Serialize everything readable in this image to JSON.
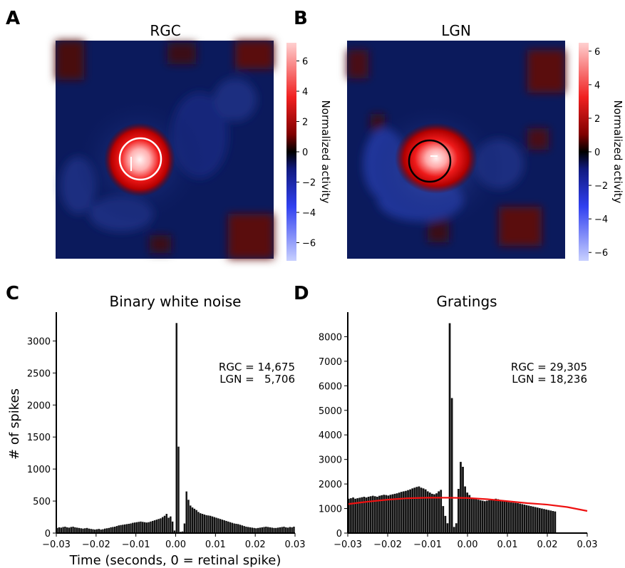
{
  "panel_labels": [
    "A",
    "B",
    "C",
    "D"
  ],
  "colors": {
    "bar": "#111111",
    "fit_line": "#ee1111",
    "map_negative": "#0a1a5e",
    "map_positive": "#b80000",
    "map_peak": "#fff0f0"
  },
  "chart_data": [
    {
      "type": "heatmap",
      "panel": "A",
      "title": "RGC",
      "colorbar_label": "Normalized activity",
      "colorbar_ticks": [
        "6",
        "4",
        "2",
        "0",
        "−2",
        "−4",
        "−6"
      ],
      "colorbar_tick_values": [
        6,
        4,
        2,
        0,
        -2,
        -4,
        -6
      ],
      "colorbar_range": [
        -7.2,
        7.2
      ],
      "circle_color": "white",
      "receptive_field_peak": 6.5
    },
    {
      "type": "heatmap",
      "panel": "B",
      "title": "LGN",
      "colorbar_label": "Normalized activity",
      "colorbar_ticks": [
        "6",
        "4",
        "2",
        "0",
        "−2",
        "−4",
        "−6"
      ],
      "colorbar_tick_values": [
        6,
        4,
        2,
        0,
        -2,
        -4,
        -6
      ],
      "colorbar_range": [
        -6.5,
        6.5
      ],
      "circle_color": "black",
      "receptive_field_peak": 6.0
    },
    {
      "type": "bar",
      "panel": "C",
      "title": "Binary white noise",
      "xlabel": "Time (seconds, 0 = retinal spike)",
      "ylabel": "# of spikes",
      "xlim": [
        -0.03,
        0.03
      ],
      "ylim": [
        0,
        3450
      ],
      "x_ticks": [
        "−0.03",
        "−0.02",
        "−0.01",
        "0.00",
        "0.01",
        "0.02",
        "0.03"
      ],
      "x_tick_values": [
        -0.03,
        -0.02,
        -0.01,
        0.0,
        0.01,
        0.02,
        0.03
      ],
      "y_ticks": [
        "0",
        "500",
        "1000",
        "1500",
        "2000",
        "2500",
        "3000"
      ],
      "y_tick_values": [
        0,
        500,
        1000,
        1500,
        2000,
        2500,
        3000
      ],
      "bin_start": -0.03,
      "bin_width": 0.0005,
      "values": [
        80,
        90,
        85,
        95,
        100,
        90,
        85,
        95,
        100,
        90,
        85,
        80,
        75,
        70,
        75,
        80,
        70,
        65,
        60,
        55,
        60,
        65,
        55,
        60,
        70,
        75,
        80,
        90,
        95,
        100,
        110,
        120,
        125,
        130,
        135,
        140,
        145,
        150,
        160,
        165,
        170,
        175,
        180,
        175,
        170,
        165,
        170,
        180,
        190,
        200,
        210,
        220,
        230,
        250,
        270,
        300,
        240,
        260,
        180,
        40,
        3280,
        1350,
        20,
        25,
        150,
        650,
        520,
        430,
        400,
        380,
        360,
        330,
        310,
        300,
        290,
        280,
        275,
        270,
        260,
        250,
        240,
        230,
        220,
        210,
        200,
        190,
        180,
        170,
        160,
        150,
        145,
        140,
        130,
        120,
        110,
        100,
        95,
        90,
        85,
        80,
        75,
        80,
        85,
        90,
        95,
        100,
        95,
        90,
        85,
        80,
        80,
        85,
        90,
        95,
        100,
        90,
        85,
        95,
        90,
        100
      ],
      "annotation": {
        "line1": "RGC = 14,675",
        "line2": "LGN =   5,706"
      }
    },
    {
      "type": "bar",
      "panel": "D",
      "title": "Gratings",
      "xlim": [
        -0.03,
        0.03
      ],
      "ylim": [
        0,
        9000
      ],
      "x_ticks": [
        "−0.03",
        "−0.02",
        "−0.01",
        "0.00",
        "0.01",
        "0.02",
        "0.03"
      ],
      "x_tick_values": [
        -0.03,
        -0.02,
        -0.01,
        0.0,
        0.01,
        0.02,
        0.03
      ],
      "y_ticks": [
        "0",
        "1000",
        "2000",
        "3000",
        "4000",
        "5000",
        "6000",
        "7000",
        "8000"
      ],
      "y_tick_values": [
        0,
        1000,
        2000,
        3000,
        4000,
        5000,
        6000,
        7000,
        8000
      ],
      "bin_start": -0.03,
      "bin_width": 0.00055,
      "values": [
        1400,
        1420,
        1450,
        1400,
        1420,
        1440,
        1460,
        1480,
        1450,
        1480,
        1500,
        1520,
        1500,
        1480,
        1520,
        1540,
        1560,
        1550,
        1530,
        1560,
        1580,
        1600,
        1620,
        1650,
        1680,
        1700,
        1720,
        1750,
        1780,
        1820,
        1850,
        1880,
        1900,
        1850,
        1820,
        1780,
        1700,
        1650,
        1600,
        1580,
        1620,
        1700,
        1760,
        1100,
        700,
        400,
        8550,
        5500,
        250,
        400,
        1800,
        2900,
        2700,
        1900,
        1650,
        1550,
        1450,
        1400,
        1380,
        1360,
        1340,
        1320,
        1300,
        1320,
        1340,
        1360,
        1380,
        1400,
        1380,
        1350,
        1320,
        1300,
        1280,
        1260,
        1250,
        1240,
        1230,
        1220,
        1200,
        1180,
        1160,
        1140,
        1120,
        1100,
        1080,
        1060,
        1040,
        1020,
        1000,
        980,
        960,
        940,
        920,
        900,
        880
      ],
      "fit_line": {
        "x": [
          -0.03,
          -0.025,
          -0.02,
          -0.015,
          -0.01,
          -0.005,
          0.0,
          0.005,
          0.01,
          0.015,
          0.02,
          0.025,
          0.03
        ],
        "y": [
          1180,
          1280,
          1360,
          1420,
          1440,
          1440,
          1430,
          1380,
          1300,
          1220,
          1160,
          1060,
          900
        ]
      },
      "annotation": {
        "line1": "RGC = 29,305",
        "line2": "LGN = 18,236"
      }
    }
  ]
}
